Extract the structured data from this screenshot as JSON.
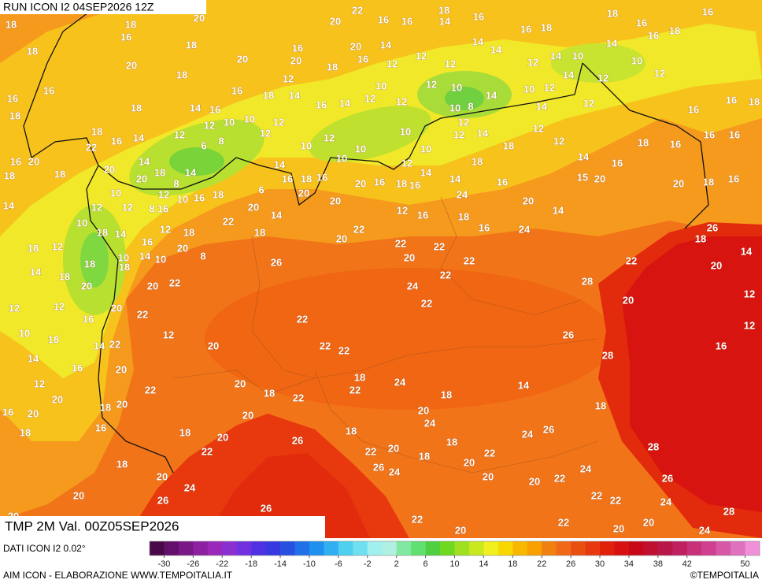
{
  "header": {
    "run": "RUN ICON I2 04SEP2026 12Z",
    "field": "TMP 2M Val. 00Z05SEP2026",
    "source": "DATI ICON I2 0.02°",
    "credit": "AIM ICON - ELABORAZIONE WWW.TEMPOITALIA.IT",
    "logo": "©TEMPOITALIA"
  },
  "legend": {
    "range": [
      -32,
      52
    ],
    "ticks": [
      -30,
      -26,
      -22,
      -18,
      -14,
      -10,
      -6,
      -2,
      2,
      6,
      10,
      14,
      18,
      22,
      26,
      30,
      34,
      38,
      42,
      50
    ],
    "colors": [
      "#4a0848",
      "#62106a",
      "#7a1888",
      "#8c20a0",
      "#9a28b8",
      "#8a30d0",
      "#7030e0",
      "#5030e0",
      "#3838e0",
      "#2850e0",
      "#2070e8",
      "#2090f0",
      "#30b0f0",
      "#50d0f0",
      "#70e0f0",
      "#a0f0f0",
      "#b0f0e0",
      "#80e8a0",
      "#60e070",
      "#50d040",
      "#70d820",
      "#a0e020",
      "#c8e820",
      "#f0f020",
      "#f8d800",
      "#f8b800",
      "#f8a000",
      "#f08010",
      "#f06818",
      "#e85010",
      "#e83810",
      "#e02008",
      "#d81010",
      "#c80818",
      "#c01030",
      "#b81848",
      "#c02060",
      "#c83078",
      "#d04090",
      "#d858a8",
      "#e070c0",
      "#f090d8"
    ]
  },
  "map": {
    "labels": [
      18,
      18,
      20,
      16,
      18,
      20,
      22,
      16,
      16,
      18,
      14,
      16,
      16,
      18,
      18,
      16,
      16,
      18,
      16,
      18,
      20,
      18,
      20,
      16,
      20,
      18,
      20,
      16,
      14,
      12,
      12,
      12,
      14,
      14,
      12,
      14,
      10,
      14,
      10,
      12,
      16,
      16,
      18,
      18,
      14,
      16,
      12,
      10,
      10,
      16,
      18,
      14,
      12,
      12,
      16,
      14,
      12,
      10,
      12,
      12,
      10,
      10,
      8,
      14,
      10,
      12,
      12,
      14,
      14,
      12,
      16,
      16,
      18,
      18,
      16,
      22,
      14,
      12,
      6,
      8,
      12,
      10,
      12,
      10,
      10,
      10,
      10,
      12,
      14,
      12,
      18,
      12,
      12,
      18,
      16,
      16,
      16,
      16,
      20,
      18,
      18,
      20,
      14,
      18,
      14,
      20,
      8,
      14,
      16,
      18,
      16,
      20,
      16,
      12,
      14,
      18,
      16,
      14,
      18,
      16,
      14,
      16,
      15,
      20,
      20,
      18,
      16,
      10,
      12,
      10,
      16,
      18,
      6,
      20,
      14,
      12,
      12,
      8,
      16,
      20,
      20,
      14,
      12,
      16,
      24,
      18,
      20,
      14,
      10,
      18,
      14,
      12,
      18,
      22,
      18,
      22,
      20,
      16,
      24,
      26,
      18,
      18,
      12,
      16,
      20,
      8,
      10,
      14,
      10,
      18,
      22,
      20,
      22,
      22,
      22,
      20,
      14,
      14,
      18,
      20,
      18,
      20,
      22,
      26,
      22,
      24,
      28,
      20,
      12,
      12,
      12,
      16,
      20,
      22,
      22,
      22,
      12,
      10,
      18,
      22,
      12,
      14,
      14,
      16,
      20,
      20,
      22,
      22,
      26,
      28,
      16,
      12,
      20,
      22,
      20,
      18,
      22,
      24,
      14,
      18,
      20,
      18,
      22,
      18,
      16,
      20,
      20,
      20,
      24,
      18,
      18,
      16,
      18,
      20,
      18,
      26,
      24,
      26,
      22,
      22,
      20,
      18,
      22,
      18,
      20,
      28,
      18,
      26,
      24,
      24,
      20,
      24,
      20,
      20,
      22,
      26,
      20,
      26,
      26,
      22,
      22,
      24,
      20,
      22,
      22,
      20,
      28,
      20,
      20,
      24
    ]
  }
}
